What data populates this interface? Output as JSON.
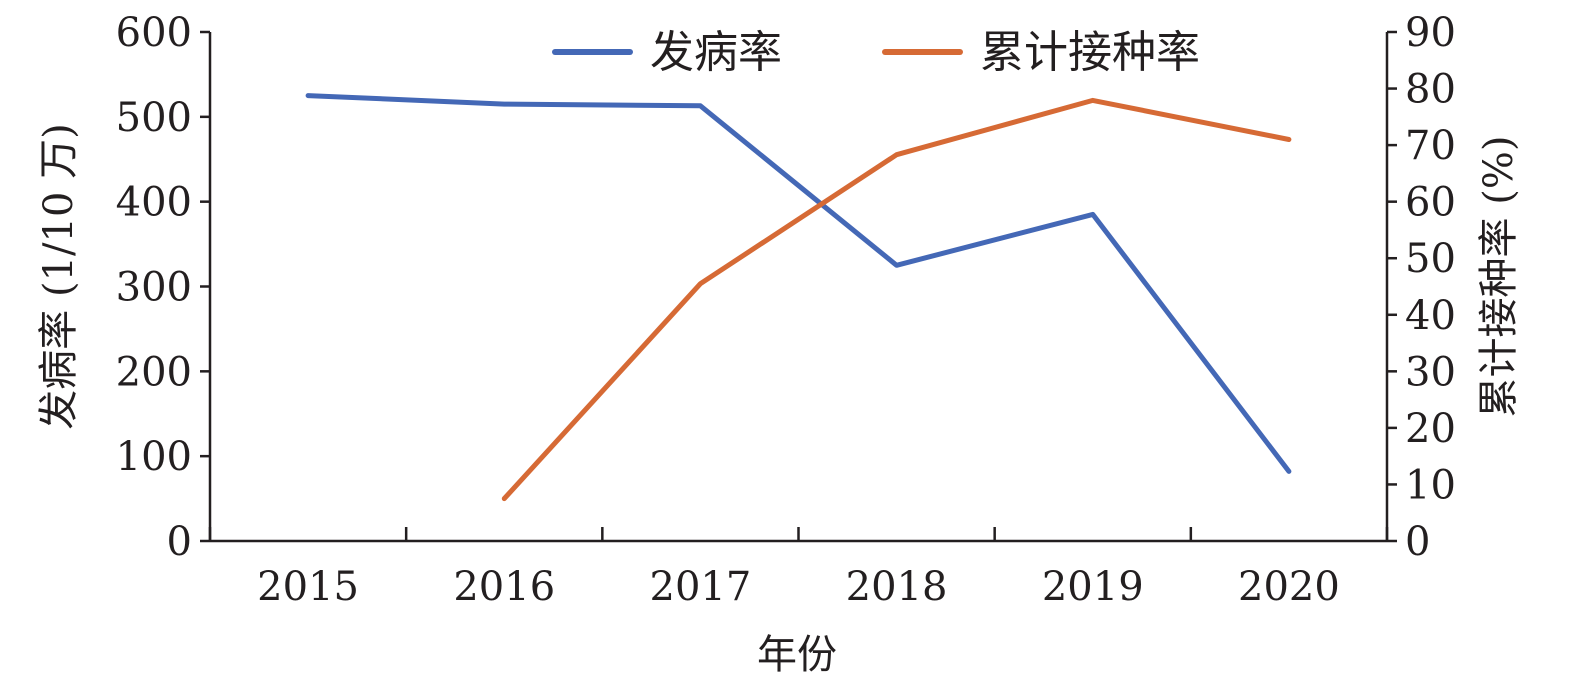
{
  "chart_data": {
    "type": "line",
    "categories": [
      "2015",
      "2016",
      "2017",
      "2018",
      "2019",
      "2020"
    ],
    "xlabel": "年份",
    "ylabel_left": "发病率 (1/10 万)",
    "ylabel_right": "累计接种率 (%)",
    "ylim_left": [
      0,
      600
    ],
    "ylim_right": [
      0,
      90
    ],
    "yticks_left": [
      "0",
      "100",
      "200",
      "300",
      "400",
      "500",
      "600"
    ],
    "yticks_right": [
      "0",
      "10",
      "20",
      "30",
      "40",
      "50",
      "60",
      "70",
      "80",
      "90"
    ],
    "grid": false,
    "legend_position": "top",
    "series": [
      {
        "name": "发病率",
        "axis": "left",
        "color": "#4468b6",
        "points": [
          {
            "x": 2015.5,
            "y": 525
          },
          {
            "x": 2016.5,
            "y": 515
          },
          {
            "x": 2017.5,
            "y": 513
          },
          {
            "x": 2018.5,
            "y": 325
          },
          {
            "x": 2019.5,
            "y": 385
          },
          {
            "x": 2020.5,
            "y": 82
          }
        ]
      },
      {
        "name": "累计接种率",
        "axis": "right",
        "color": "#d66a35",
        "points": [
          {
            "x": 2016.5,
            "y": 7.5
          },
          {
            "x": 2017.5,
            "y": 45.5
          },
          {
            "x": 2018.5,
            "y": 68.3
          },
          {
            "x": 2019.5,
            "y": 77.9
          },
          {
            "x": 2020.5,
            "y": 71
          }
        ]
      }
    ]
  }
}
